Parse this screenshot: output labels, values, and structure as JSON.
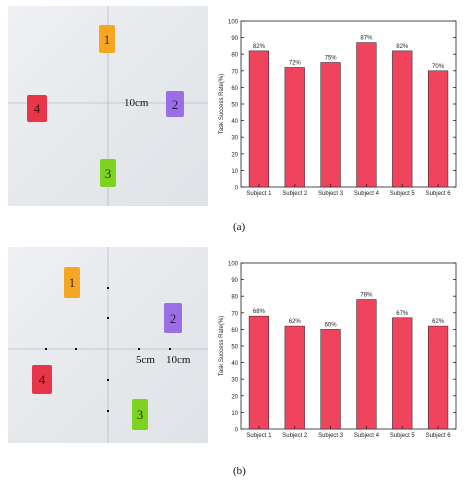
{
  "figure_a": {
    "caption": "(a)",
    "photo": {
      "blocks": [
        {
          "label": "1",
          "color": "#f5a623"
        },
        {
          "label": "2",
          "color": "#9b6ee8"
        },
        {
          "label": "3",
          "color": "#7ed321"
        },
        {
          "label": "4",
          "color": "#e8354a"
        }
      ],
      "distance_label": "10cm"
    }
  },
  "figure_b": {
    "caption": "(b)",
    "photo": {
      "blocks": [
        {
          "label": "1",
          "color": "#f5a623"
        },
        {
          "label": "2",
          "color": "#9b6ee8"
        },
        {
          "label": "3",
          "color": "#7ed321"
        },
        {
          "label": "4",
          "color": "#e8354a"
        }
      ],
      "distance_label_inner": "5cm",
      "distance_label_outer": "10cm"
    }
  },
  "bar_color": "#f0445e",
  "chart_data": [
    {
      "type": "bar",
      "categories": [
        "Subject 1",
        "Subject 2",
        "Subject 3",
        "Subject 4",
        "Subject 5",
        "Subject 6"
      ],
      "values": [
        82,
        72,
        75,
        87,
        82,
        70
      ],
      "data_labels": [
        "82%",
        "72%",
        "75%",
        "87%",
        "82%",
        "70%"
      ],
      "ylabel": "Task Success Rate(%)",
      "ylim": [
        0,
        100
      ],
      "yticks": [
        0,
        10,
        20,
        30,
        40,
        50,
        60,
        70,
        80,
        90,
        100
      ],
      "grid": false
    },
    {
      "type": "bar",
      "categories": [
        "Subject 1",
        "Subject 2",
        "Subject 3",
        "Subject 4",
        "Subject 5",
        "Subject 6"
      ],
      "values": [
        68,
        62,
        60,
        78,
        67,
        62
      ],
      "data_labels": [
        "68%",
        "62%",
        "60%",
        "78%",
        "67%",
        "62%"
      ],
      "ylabel": "Task Success Rate(%)",
      "ylim": [
        0,
        100
      ],
      "yticks": [
        0,
        10,
        20,
        30,
        40,
        50,
        60,
        70,
        80,
        90,
        100
      ],
      "grid": false
    }
  ]
}
